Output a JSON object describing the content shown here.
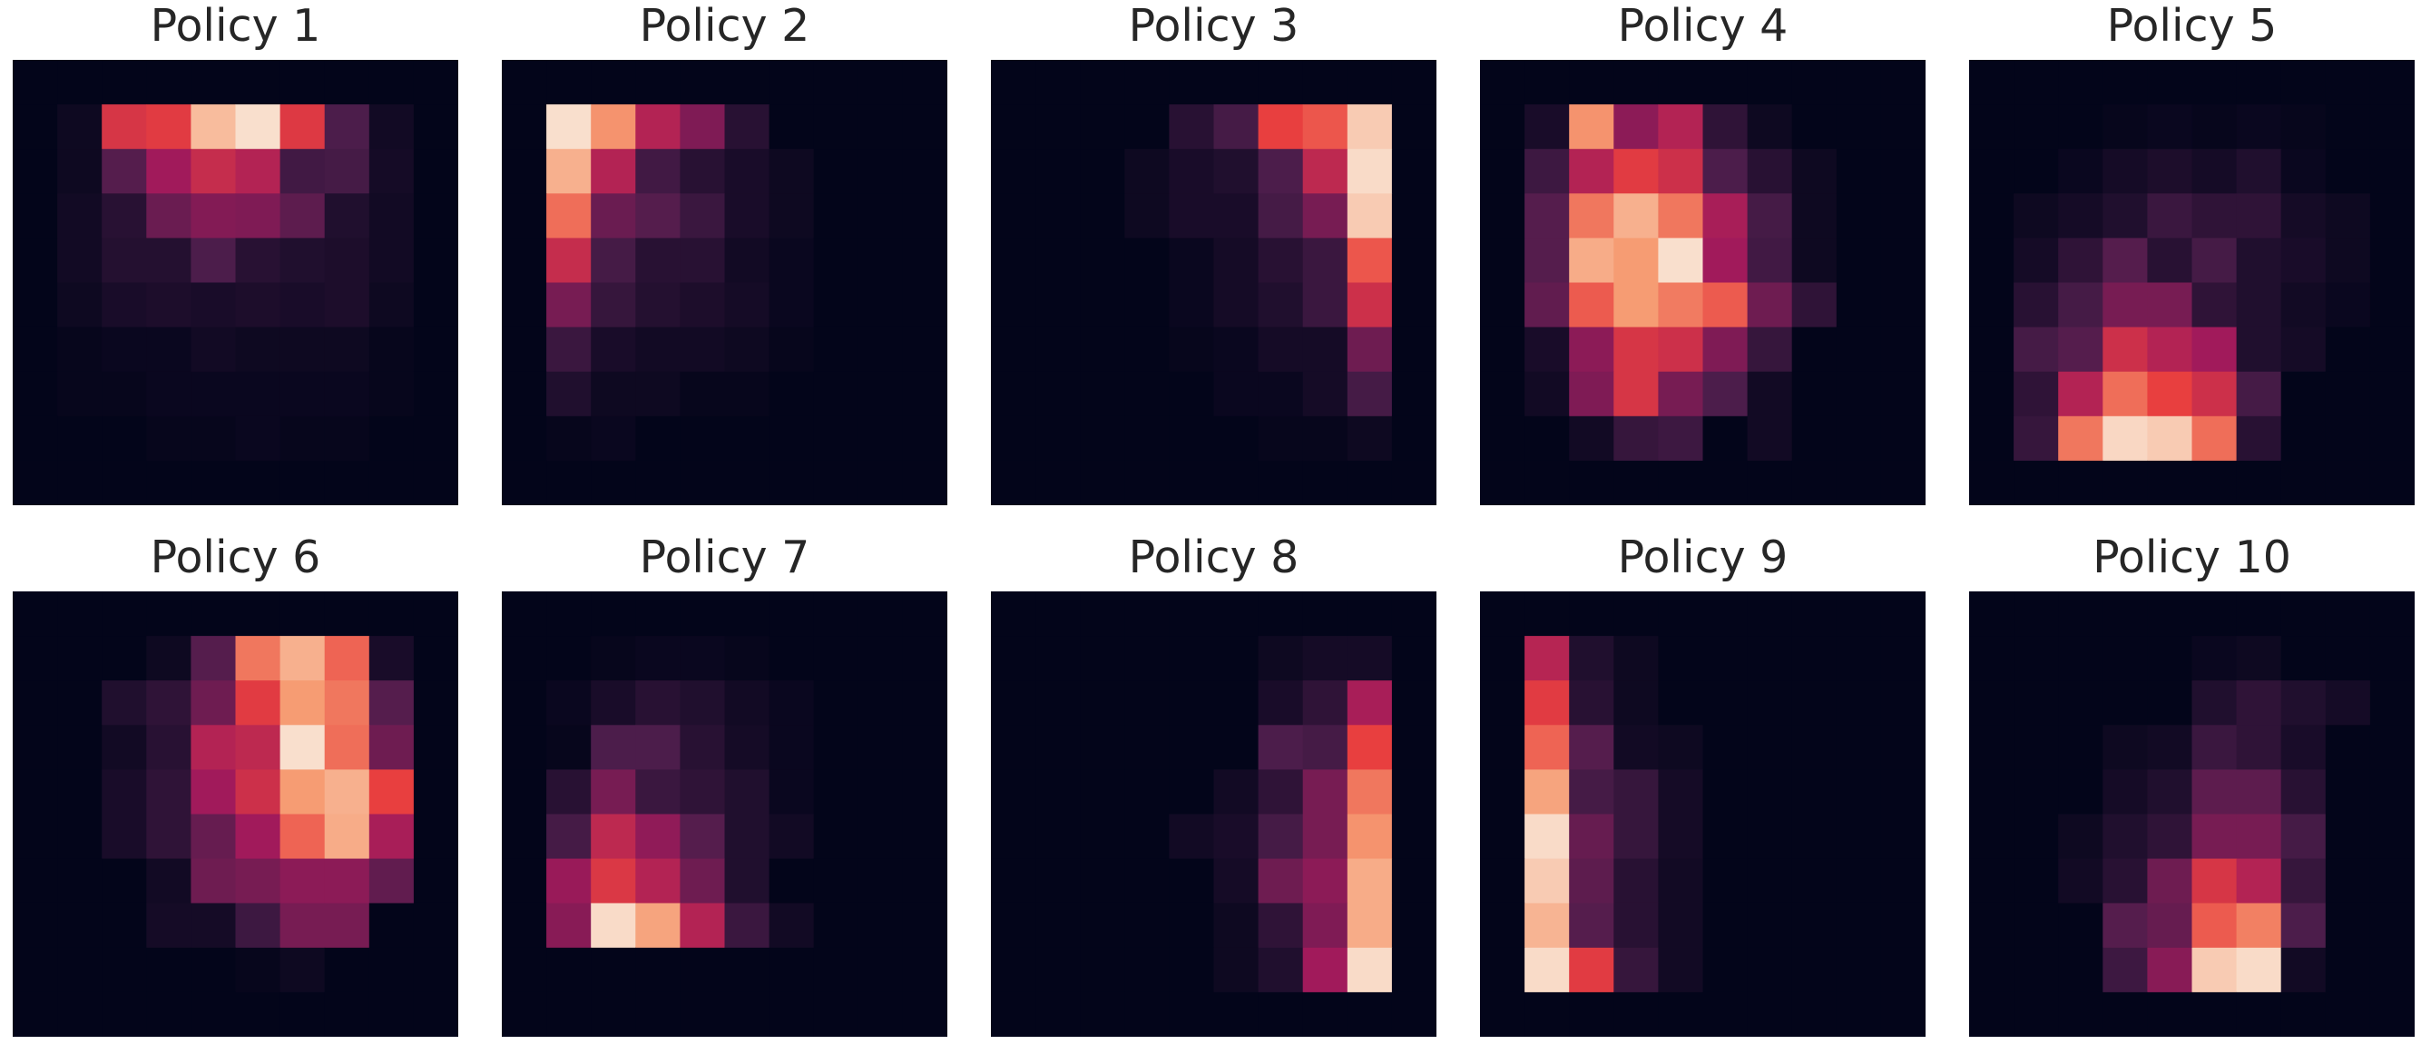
{
  "colormap": {
    "name": "rocket",
    "stops": [
      "#03051a",
      "#4c1d4b",
      "#a11a5b",
      "#e83f3f",
      "#f69c73",
      "#faebdd"
    ]
  },
  "chart_data": [
    {
      "type": "heatmap",
      "title": "Policy 1",
      "rows": 10,
      "cols": 10,
      "z": [
        [
          0.0,
          0.0,
          0.0,
          0.0,
          0.0,
          0.0,
          0.0,
          0.0,
          0.0,
          0.0
        ],
        [
          0.0,
          0.03,
          0.55,
          0.58,
          0.88,
          0.97,
          0.57,
          0.2,
          0.04,
          0.0
        ],
        [
          0.0,
          0.03,
          0.22,
          0.4,
          0.5,
          0.45,
          0.17,
          0.18,
          0.05,
          0.0
        ],
        [
          0.0,
          0.04,
          0.1,
          0.27,
          0.33,
          0.32,
          0.24,
          0.08,
          0.04,
          0.0
        ],
        [
          0.0,
          0.04,
          0.09,
          0.09,
          0.2,
          0.1,
          0.08,
          0.07,
          0.04,
          0.0
        ],
        [
          0.0,
          0.03,
          0.06,
          0.07,
          0.06,
          0.07,
          0.06,
          0.07,
          0.03,
          0.0
        ],
        [
          0.0,
          0.01,
          0.02,
          0.02,
          0.04,
          0.03,
          0.03,
          0.03,
          0.01,
          0.0
        ],
        [
          0.0,
          0.01,
          0.01,
          0.02,
          0.02,
          0.02,
          0.02,
          0.02,
          0.01,
          0.0
        ],
        [
          0.0,
          0.0,
          0.0,
          0.01,
          0.01,
          0.02,
          0.01,
          0.01,
          0.0,
          0.0
        ],
        [
          0.0,
          0.0,
          0.0,
          0.0,
          0.0,
          0.0,
          0.0,
          0.0,
          0.0,
          0.0
        ]
      ]
    },
    {
      "type": "heatmap",
      "title": "Policy 2",
      "rows": 10,
      "cols": 10,
      "z": [
        [
          0.0,
          0.0,
          0.0,
          0.0,
          0.0,
          0.0,
          0.0,
          0.0,
          0.0,
          0.0
        ],
        [
          0.0,
          0.97,
          0.78,
          0.45,
          0.32,
          0.1,
          0.0,
          0.0,
          0.0,
          0.0
        ],
        [
          0.0,
          0.85,
          0.45,
          0.17,
          0.1,
          0.06,
          0.03,
          0.0,
          0.0,
          0.0
        ],
        [
          0.0,
          0.7,
          0.27,
          0.22,
          0.15,
          0.06,
          0.03,
          0.0,
          0.0,
          0.0
        ],
        [
          0.0,
          0.5,
          0.18,
          0.1,
          0.1,
          0.04,
          0.02,
          0.0,
          0.0,
          0.0
        ],
        [
          0.0,
          0.3,
          0.14,
          0.09,
          0.07,
          0.05,
          0.02,
          0.0,
          0.0,
          0.0
        ],
        [
          0.0,
          0.15,
          0.06,
          0.04,
          0.04,
          0.03,
          0.01,
          0.0,
          0.0,
          0.0
        ],
        [
          0.0,
          0.08,
          0.03,
          0.03,
          0.01,
          0.01,
          0.0,
          0.0,
          0.0,
          0.0
        ],
        [
          0.0,
          0.01,
          0.02,
          0.0,
          0.0,
          0.0,
          0.0,
          0.0,
          0.0,
          0.0
        ],
        [
          0.0,
          0.0,
          0.0,
          0.0,
          0.0,
          0.0,
          0.0,
          0.0,
          0.0,
          0.0
        ]
      ]
    },
    {
      "type": "heatmap",
      "title": "Policy 3",
      "rows": 10,
      "cols": 10,
      "z": [
        [
          0.0,
          0.0,
          0.0,
          0.0,
          0.0,
          0.0,
          0.0,
          0.0,
          0.0,
          0.0
        ],
        [
          0.0,
          0.0,
          0.0,
          0.0,
          0.1,
          0.18,
          0.6,
          0.65,
          0.92,
          0.0
        ],
        [
          0.0,
          0.0,
          0.0,
          0.03,
          0.06,
          0.08,
          0.2,
          0.48,
          0.96,
          0.0
        ],
        [
          0.0,
          0.0,
          0.0,
          0.03,
          0.06,
          0.06,
          0.18,
          0.3,
          0.92,
          0.0
        ],
        [
          0.0,
          0.0,
          0.0,
          0.0,
          0.02,
          0.05,
          0.1,
          0.15,
          0.65,
          0.0
        ],
        [
          0.0,
          0.0,
          0.0,
          0.0,
          0.02,
          0.05,
          0.08,
          0.15,
          0.52,
          0.0
        ],
        [
          0.0,
          0.0,
          0.0,
          0.0,
          0.01,
          0.02,
          0.05,
          0.05,
          0.28,
          0.0
        ],
        [
          0.0,
          0.0,
          0.0,
          0.0,
          0.0,
          0.02,
          0.02,
          0.05,
          0.18,
          0.0
        ],
        [
          0.0,
          0.0,
          0.0,
          0.0,
          0.0,
          0.0,
          0.01,
          0.01,
          0.03,
          0.0
        ],
        [
          0.0,
          0.0,
          0.0,
          0.0,
          0.0,
          0.0,
          0.0,
          0.0,
          0.0,
          0.0
        ]
      ]
    },
    {
      "type": "heatmap",
      "title": "Policy 4",
      "rows": 10,
      "cols": 10,
      "z": [
        [
          0.0,
          0.0,
          0.0,
          0.0,
          0.0,
          0.0,
          0.0,
          0.0,
          0.0,
          0.0
        ],
        [
          0.0,
          0.06,
          0.78,
          0.35,
          0.45,
          0.12,
          0.03,
          0.0,
          0.0,
          0.0
        ],
        [
          0.0,
          0.16,
          0.45,
          0.58,
          0.52,
          0.2,
          0.1,
          0.03,
          0.0,
          0.0
        ],
        [
          0.0,
          0.22,
          0.72,
          0.85,
          0.72,
          0.42,
          0.18,
          0.03,
          0.0,
          0.0
        ],
        [
          0.0,
          0.22,
          0.84,
          0.8,
          0.97,
          0.4,
          0.17,
          0.03,
          0.0,
          0.0
        ],
        [
          0.0,
          0.25,
          0.66,
          0.8,
          0.73,
          0.66,
          0.28,
          0.12,
          0.0,
          0.0
        ],
        [
          0.0,
          0.06,
          0.35,
          0.55,
          0.52,
          0.32,
          0.14,
          0.0,
          0.0,
          0.0
        ],
        [
          0.0,
          0.04,
          0.32,
          0.55,
          0.3,
          0.2,
          0.04,
          0.0,
          0.0,
          0.0
        ],
        [
          0.0,
          0.0,
          0.04,
          0.14,
          0.16,
          0.0,
          0.04,
          0.0,
          0.0,
          0.0
        ],
        [
          0.0,
          0.0,
          0.0,
          0.0,
          0.0,
          0.0,
          0.0,
          0.0,
          0.0,
          0.0
        ]
      ]
    },
    {
      "type": "heatmap",
      "title": "Policy 5",
      "rows": 10,
      "cols": 10,
      "z": [
        [
          0.0,
          0.0,
          0.0,
          0.0,
          0.0,
          0.0,
          0.0,
          0.0,
          0.0,
          0.0
        ],
        [
          0.0,
          0.0,
          0.0,
          0.01,
          0.02,
          0.01,
          0.02,
          0.01,
          0.0,
          0.0
        ],
        [
          0.0,
          0.0,
          0.02,
          0.05,
          0.07,
          0.05,
          0.08,
          0.02,
          0.0,
          0.0
        ],
        [
          0.0,
          0.03,
          0.05,
          0.08,
          0.15,
          0.12,
          0.12,
          0.05,
          0.03,
          0.0
        ],
        [
          0.0,
          0.05,
          0.12,
          0.22,
          0.1,
          0.18,
          0.08,
          0.06,
          0.03,
          0.0
        ],
        [
          0.0,
          0.1,
          0.18,
          0.3,
          0.3,
          0.12,
          0.08,
          0.04,
          0.02,
          0.0
        ],
        [
          0.0,
          0.18,
          0.22,
          0.52,
          0.45,
          0.4,
          0.08,
          0.05,
          0.0,
          0.0
        ],
        [
          0.0,
          0.12,
          0.45,
          0.7,
          0.6,
          0.52,
          0.18,
          0.0,
          0.0,
          0.0
        ],
        [
          0.0,
          0.14,
          0.72,
          0.95,
          0.92,
          0.7,
          0.1,
          0.0,
          0.0,
          0.0
        ],
        [
          0.0,
          0.0,
          0.0,
          0.0,
          0.0,
          0.0,
          0.0,
          0.0,
          0.0,
          0.0
        ]
      ]
    },
    {
      "type": "heatmap",
      "title": "Policy 6",
      "rows": 10,
      "cols": 10,
      "z": [
        [
          0.0,
          0.0,
          0.0,
          0.0,
          0.0,
          0.0,
          0.0,
          0.0,
          0.0,
          0.0
        ],
        [
          0.0,
          0.0,
          0.0,
          0.03,
          0.22,
          0.72,
          0.85,
          0.68,
          0.06,
          0.0
        ],
        [
          0.0,
          0.0,
          0.08,
          0.12,
          0.28,
          0.58,
          0.8,
          0.72,
          0.22,
          0.0
        ],
        [
          0.0,
          0.0,
          0.04,
          0.1,
          0.45,
          0.48,
          0.97,
          0.7,
          0.28,
          0.0
        ],
        [
          0.0,
          0.0,
          0.06,
          0.12,
          0.4,
          0.52,
          0.8,
          0.85,
          0.6,
          0.0
        ],
        [
          0.0,
          0.0,
          0.06,
          0.12,
          0.26,
          0.4,
          0.68,
          0.84,
          0.42,
          0.0
        ],
        [
          0.0,
          0.0,
          0.0,
          0.04,
          0.28,
          0.3,
          0.35,
          0.35,
          0.25,
          0.0
        ],
        [
          0.0,
          0.0,
          0.0,
          0.05,
          0.05,
          0.16,
          0.3,
          0.3,
          0.0,
          0.0
        ],
        [
          0.0,
          0.0,
          0.0,
          0.0,
          0.0,
          0.01,
          0.03,
          0.0,
          0.0,
          0.0
        ],
        [
          0.0,
          0.0,
          0.0,
          0.0,
          0.0,
          0.0,
          0.0,
          0.0,
          0.0,
          0.0
        ]
      ]
    },
    {
      "type": "heatmap",
      "title": "Policy 7",
      "rows": 10,
      "cols": 10,
      "z": [
        [
          0.0,
          0.0,
          0.0,
          0.0,
          0.0,
          0.0,
          0.0,
          0.0,
          0.0,
          0.0
        ],
        [
          0.0,
          0.0,
          0.01,
          0.02,
          0.02,
          0.01,
          0.0,
          0.0,
          0.0,
          0.0
        ],
        [
          0.0,
          0.02,
          0.06,
          0.1,
          0.08,
          0.04,
          0.02,
          0.0,
          0.0,
          0.0
        ],
        [
          0.0,
          0.01,
          0.2,
          0.2,
          0.1,
          0.05,
          0.02,
          0.0,
          0.0,
          0.0
        ],
        [
          0.0,
          0.1,
          0.3,
          0.15,
          0.12,
          0.08,
          0.02,
          0.0,
          0.0,
          0.0
        ],
        [
          0.0,
          0.18,
          0.48,
          0.36,
          0.22,
          0.08,
          0.04,
          0.0,
          0.0,
          0.0
        ],
        [
          0.0,
          0.38,
          0.56,
          0.45,
          0.28,
          0.08,
          0.0,
          0.0,
          0.0,
          0.0
        ],
        [
          0.0,
          0.34,
          0.96,
          0.82,
          0.45,
          0.15,
          0.04,
          0.0,
          0.0,
          0.0
        ],
        [
          0.0,
          0.0,
          0.0,
          0.0,
          0.0,
          0.0,
          0.0,
          0.0,
          0.0,
          0.0
        ],
        [
          0.0,
          0.0,
          0.0,
          0.0,
          0.0,
          0.0,
          0.0,
          0.0,
          0.0,
          0.0
        ]
      ]
    },
    {
      "type": "heatmap",
      "title": "Policy 8",
      "rows": 10,
      "cols": 10,
      "z": [
        [
          0.0,
          0.0,
          0.0,
          0.0,
          0.0,
          0.0,
          0.0,
          0.0,
          0.0,
          0.0
        ],
        [
          0.0,
          0.0,
          0.0,
          0.0,
          0.0,
          0.0,
          0.03,
          0.05,
          0.05,
          0.0
        ],
        [
          0.0,
          0.0,
          0.0,
          0.0,
          0.0,
          0.0,
          0.06,
          0.12,
          0.42,
          0.0
        ],
        [
          0.0,
          0.0,
          0.0,
          0.0,
          0.0,
          0.0,
          0.2,
          0.18,
          0.6,
          0.0
        ],
        [
          0.0,
          0.0,
          0.0,
          0.0,
          0.0,
          0.04,
          0.12,
          0.3,
          0.72,
          0.0
        ],
        [
          0.0,
          0.0,
          0.0,
          0.0,
          0.04,
          0.06,
          0.18,
          0.3,
          0.78,
          0.0
        ],
        [
          0.0,
          0.0,
          0.0,
          0.0,
          0.0,
          0.05,
          0.28,
          0.35,
          0.84,
          0.0
        ],
        [
          0.0,
          0.0,
          0.0,
          0.0,
          0.0,
          0.03,
          0.12,
          0.32,
          0.84,
          0.0
        ],
        [
          0.0,
          0.0,
          0.0,
          0.0,
          0.0,
          0.03,
          0.08,
          0.4,
          0.96,
          0.0
        ],
        [
          0.0,
          0.0,
          0.0,
          0.0,
          0.0,
          0.0,
          0.0,
          0.0,
          0.0,
          0.0
        ]
      ]
    },
    {
      "type": "heatmap",
      "title": "Policy 9",
      "rows": 10,
      "cols": 10,
      "z": [
        [
          0.0,
          0.0,
          0.0,
          0.0,
          0.0,
          0.0,
          0.0,
          0.0,
          0.0,
          0.0
        ],
        [
          0.0,
          0.46,
          0.08,
          0.03,
          0.0,
          0.0,
          0.0,
          0.0,
          0.0,
          0.0
        ],
        [
          0.0,
          0.58,
          0.1,
          0.03,
          0.0,
          0.0,
          0.0,
          0.0,
          0.0,
          0.0
        ],
        [
          0.0,
          0.68,
          0.22,
          0.04,
          0.03,
          0.0,
          0.0,
          0.0,
          0.0,
          0.0
        ],
        [
          0.0,
          0.82,
          0.18,
          0.14,
          0.05,
          0.0,
          0.0,
          0.0,
          0.0,
          0.0
        ],
        [
          0.0,
          0.96,
          0.26,
          0.14,
          0.05,
          0.0,
          0.0,
          0.0,
          0.0,
          0.0
        ],
        [
          0.0,
          0.92,
          0.24,
          0.1,
          0.04,
          0.0,
          0.0,
          0.0,
          0.0,
          0.0
        ],
        [
          0.0,
          0.86,
          0.22,
          0.1,
          0.04,
          0.0,
          0.0,
          0.0,
          0.0,
          0.0
        ],
        [
          0.0,
          0.96,
          0.58,
          0.14,
          0.04,
          0.0,
          0.0,
          0.0,
          0.0,
          0.0
        ],
        [
          0.0,
          0.0,
          0.0,
          0.0,
          0.0,
          0.0,
          0.0,
          0.0,
          0.0,
          0.0
        ]
      ]
    },
    {
      "type": "heatmap",
      "title": "Policy 10",
      "rows": 10,
      "cols": 10,
      "z": [
        [
          0.0,
          0.0,
          0.0,
          0.0,
          0.0,
          0.0,
          0.0,
          0.0,
          0.0,
          0.0
        ],
        [
          0.0,
          0.0,
          0.0,
          0.0,
          0.0,
          0.02,
          0.03,
          0.0,
          0.0,
          0.0
        ],
        [
          0.0,
          0.0,
          0.0,
          0.0,
          0.0,
          0.08,
          0.12,
          0.08,
          0.05,
          0.0
        ],
        [
          0.0,
          0.0,
          0.0,
          0.03,
          0.04,
          0.15,
          0.12,
          0.06,
          0.0,
          0.0
        ],
        [
          0.0,
          0.0,
          0.0,
          0.05,
          0.08,
          0.24,
          0.24,
          0.1,
          0.0,
          0.0
        ],
        [
          0.0,
          0.0,
          0.03,
          0.08,
          0.12,
          0.3,
          0.3,
          0.18,
          0.0,
          0.0
        ],
        [
          0.0,
          0.0,
          0.04,
          0.1,
          0.28,
          0.55,
          0.45,
          0.14,
          0.0,
          0.0
        ],
        [
          0.0,
          0.0,
          0.0,
          0.22,
          0.26,
          0.66,
          0.74,
          0.2,
          0.0,
          0.0
        ],
        [
          0.0,
          0.0,
          0.0,
          0.16,
          0.34,
          0.92,
          0.96,
          0.04,
          0.0,
          0.0
        ],
        [
          0.0,
          0.0,
          0.0,
          0.0,
          0.0,
          0.0,
          0.0,
          0.0,
          0.0,
          0.0
        ]
      ]
    }
  ]
}
